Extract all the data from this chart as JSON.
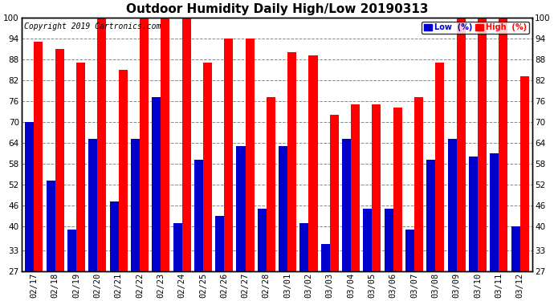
{
  "title": "Outdoor Humidity Daily High/Low 20190313",
  "copyright": "Copyright 2019 Cartronics.com",
  "dates": [
    "02/17",
    "02/18",
    "02/19",
    "02/20",
    "02/21",
    "02/22",
    "02/23",
    "02/24",
    "02/25",
    "02/26",
    "02/27",
    "02/28",
    "03/01",
    "03/02",
    "03/03",
    "03/04",
    "03/05",
    "03/06",
    "03/07",
    "03/08",
    "03/09",
    "03/10",
    "03/11",
    "03/12"
  ],
  "high_values": [
    93,
    91,
    87,
    100,
    85,
    100,
    100,
    100,
    87,
    94,
    94,
    77,
    90,
    89,
    72,
    75,
    75,
    74,
    77,
    87,
    100,
    100,
    100,
    83
  ],
  "low_values": [
    70,
    53,
    39,
    65,
    47,
    65,
    77,
    41,
    59,
    43,
    63,
    45,
    63,
    41,
    35,
    65,
    45,
    45,
    39,
    59,
    65,
    60,
    61,
    40
  ],
  "high_color": "#ff0000",
  "low_color": "#0000cc",
  "bg_color": "#ffffff",
  "grid_color": "#888888",
  "ymin": 27,
  "ymax": 100,
  "yticks": [
    27,
    33,
    40,
    46,
    52,
    58,
    64,
    70,
    76,
    82,
    88,
    94,
    100
  ],
  "bar_width": 0.42,
  "title_fontsize": 11,
  "tick_fontsize": 7.5,
  "copyright_fontsize": 7,
  "legend_labels": [
    "Low  (%)",
    "High  (%)"
  ]
}
